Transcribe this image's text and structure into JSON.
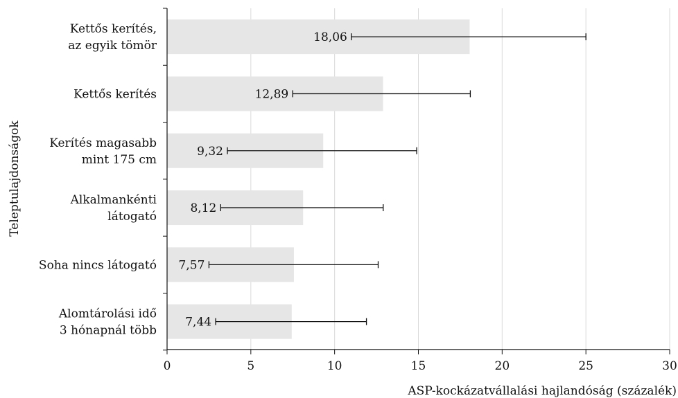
{
  "chart_data": {
    "type": "bar",
    "orientation": "horizontal",
    "categories": [
      [
        "Kettős kerítés,",
        "az egyik tömör"
      ],
      [
        "Kettős kerítés"
      ],
      [
        "Kerítés magasabb",
        "mint 175 cm"
      ],
      [
        "Alkalmankénti",
        "látogató"
      ],
      [
        "Soha nincs látogató"
      ],
      [
        "Alomtárolási idő",
        "3 hónapnál több"
      ]
    ],
    "values": [
      18.06,
      12.89,
      9.32,
      8.12,
      7.57,
      7.44
    ],
    "value_labels": [
      "18,06",
      "12,89",
      "9,32",
      "8,12",
      "7,57",
      "7,44"
    ],
    "error_low": [
      11.0,
      7.5,
      3.6,
      3.2,
      2.5,
      2.9
    ],
    "error_high": [
      25.0,
      18.1,
      14.9,
      12.9,
      12.6,
      11.9
    ],
    "xlim": [
      0,
      30
    ],
    "xticks": [
      0,
      5,
      10,
      15,
      20,
      25,
      30
    ],
    "xlabel": "ASP-kockázatvállalási hajlandóság (százalék)",
    "ylabel": "Teleptulajdonságok",
    "grid": "vertical",
    "bar_color": "#e6e6e6",
    "grid_color": "#d9d9d9",
    "error_color": "#111111"
  }
}
